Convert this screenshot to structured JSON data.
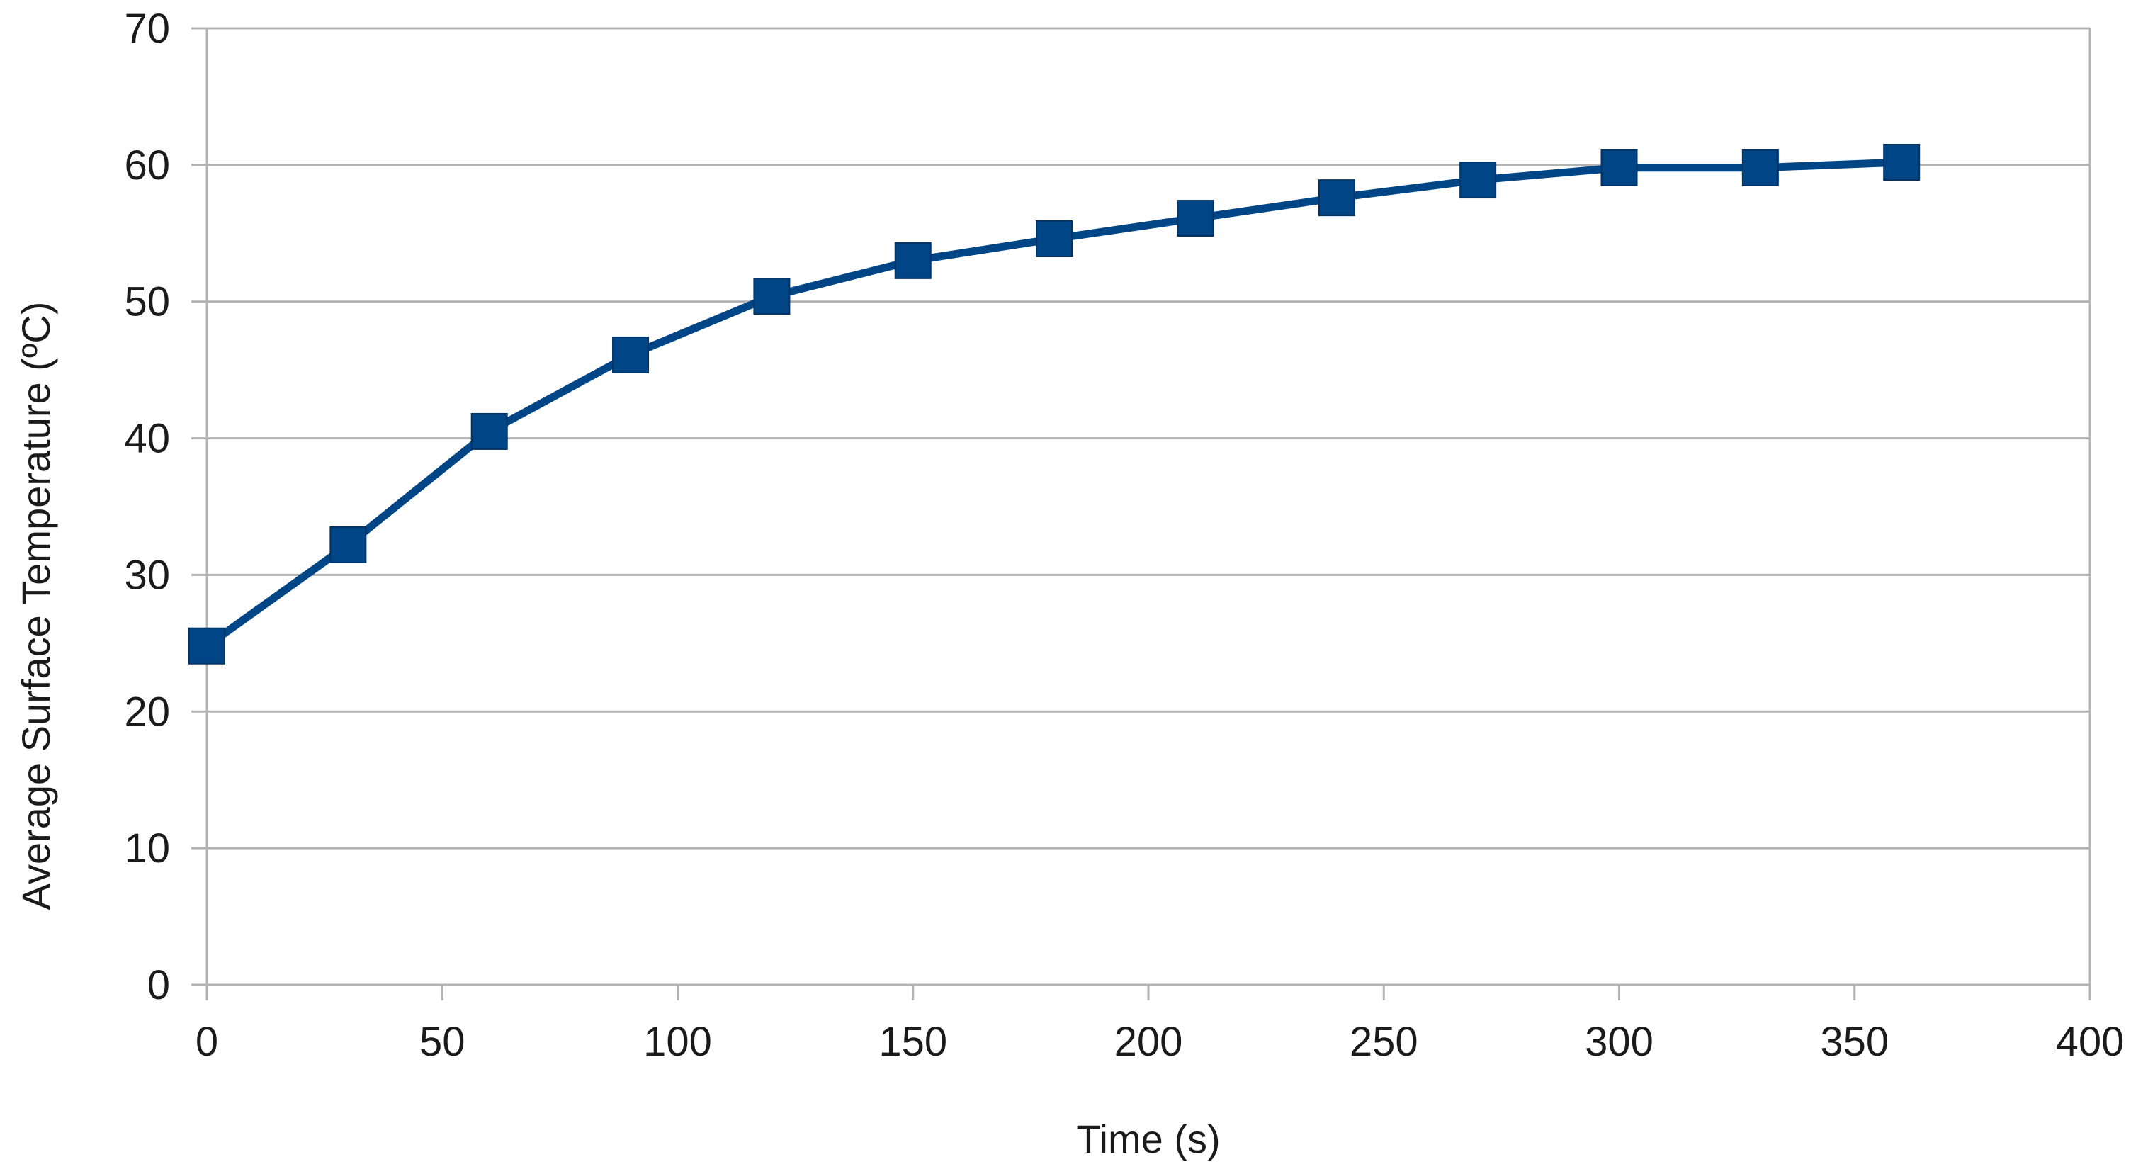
{
  "chart_data": {
    "type": "line",
    "title": "",
    "xlabel": "Time (s)",
    "ylabel": "Average Surface Temperature (ºC)",
    "xlim": [
      0,
      400
    ],
    "ylim": [
      0,
      70
    ],
    "x_ticks": [
      "0",
      "50",
      "100",
      "150",
      "200",
      "250",
      "300",
      "350",
      "400"
    ],
    "y_ticks": [
      "0",
      "10",
      "20",
      "30",
      "40",
      "50",
      "60",
      "70"
    ],
    "grid": "horizontal",
    "legend": "none",
    "series": [
      {
        "marker": "square",
        "color": "#004586",
        "x": [
          0,
          30,
          60,
          90,
          120,
          150,
          180,
          210,
          240,
          270,
          300,
          330,
          360
        ],
        "y": [
          24.8,
          32.2,
          40.5,
          46.1,
          50.4,
          53.0,
          54.6,
          56.1,
          57.6,
          58.9,
          59.8,
          59.8,
          60.2
        ]
      }
    ]
  },
  "colors": {
    "series": "#004586",
    "grid": "#b3b3b3",
    "axis": "#b3b3b3",
    "text": "#1a1a1a"
  }
}
